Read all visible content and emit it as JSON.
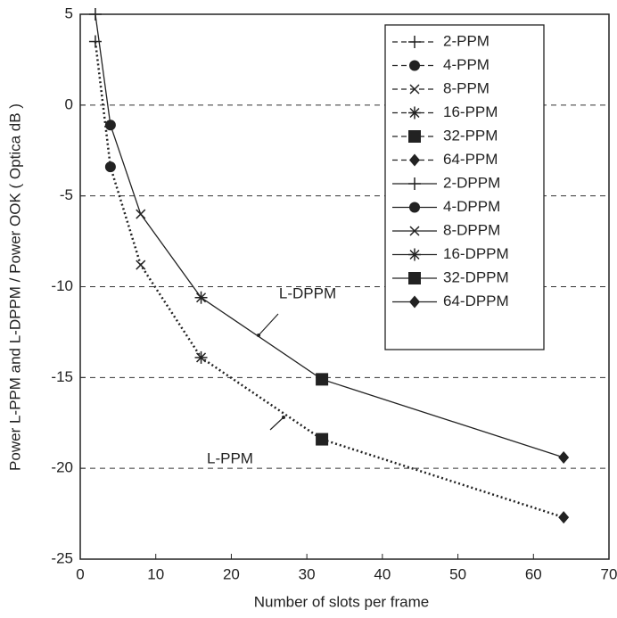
{
  "chart_data": {
    "type": "line",
    "xlabel": "Number of slots per frame",
    "ylabel": "Power L-PPM and L-DPPM / Power OOK  ( Optica dB )",
    "x": [
      2,
      4,
      8,
      16,
      32,
      64
    ],
    "markers": [
      "plus",
      "circle",
      "x",
      "asterisk",
      "square",
      "diamond"
    ],
    "series": [
      {
        "name": "L-DPPM",
        "color": "#222222",
        "line": "solid",
        "values": [
          5,
          -1.1,
          -6.0,
          -10.6,
          -15.1,
          -19.4
        ]
      },
      {
        "name": "L-PPM",
        "color": "#222222",
        "line": "dotted",
        "values": [
          3.5,
          -3.4,
          -8.8,
          -13.9,
          -18.4,
          -22.7
        ]
      }
    ],
    "legend": [
      {
        "name": "2-PPM",
        "marker": "plus",
        "line": "dashed"
      },
      {
        "name": "4-PPM",
        "marker": "circle",
        "line": "dashed"
      },
      {
        "name": "8-PPM",
        "marker": "x",
        "line": "dashed"
      },
      {
        "name": "16-PPM",
        "marker": "asterisk",
        "line": "dashed"
      },
      {
        "name": "32-PPM",
        "marker": "square",
        "line": "dashed"
      },
      {
        "name": "64-PPM",
        "marker": "diamond",
        "line": "dashed"
      },
      {
        "name": "2-DPPM",
        "marker": "plus",
        "line": "solid"
      },
      {
        "name": "4-DPPM",
        "marker": "circle",
        "line": "solid"
      },
      {
        "name": "8-DPPM",
        "marker": "x",
        "line": "solid"
      },
      {
        "name": "16-DPPM",
        "marker": "asterisk",
        "line": "solid"
      },
      {
        "name": "32-DPPM",
        "marker": "square",
        "line": "solid"
      },
      {
        "name": "64-DPPM",
        "marker": "diamond",
        "line": "solid"
      }
    ],
    "xlim": [
      0,
      70
    ],
    "xticks": [
      0,
      10,
      20,
      30,
      40,
      50,
      60,
      70
    ],
    "ylim": [
      -25,
      5
    ],
    "yticks": [
      -25,
      -20,
      -15,
      -10,
      -5,
      0,
      5
    ],
    "grid": "y"
  }
}
